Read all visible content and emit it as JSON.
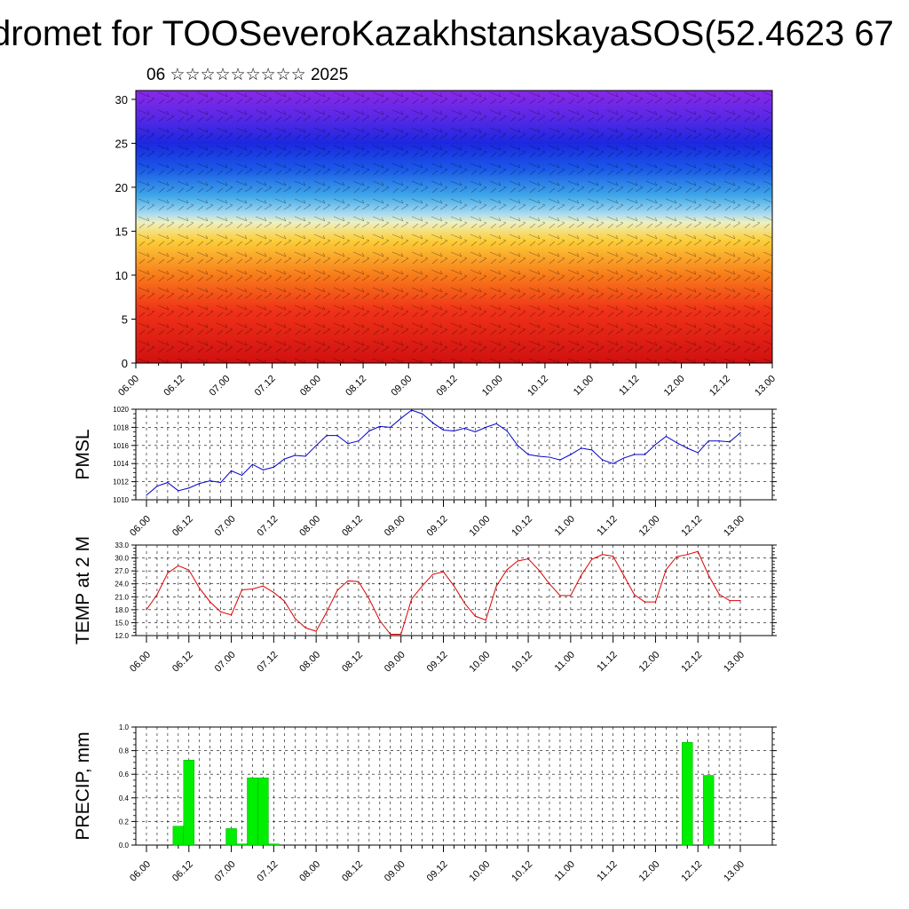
{
  "title": "dromet for TOOSeveroKazakhstanskayaSOS(52.4623 67",
  "subtitle": "06 ☆☆☆☆☆☆☆☆☆ 2025",
  "time_labels": [
    "06.00",
    "06.12",
    "07.00",
    "07.12",
    "08.00",
    "08.12",
    "09.00",
    "09.12",
    "10.00",
    "10.12",
    "11.00",
    "11.12",
    "12.00",
    "12.12",
    "13.00"
  ],
  "chart_data": [
    {
      "type": "heatmap",
      "title": "",
      "xlabel": "",
      "ylabel": "",
      "ylim": [
        0,
        31
      ],
      "yticks": [
        0,
        5,
        10,
        15,
        20,
        25,
        30
      ],
      "color_profile": [
        {
          "level": 0,
          "color": "#d01010"
        },
        {
          "level": 6,
          "color": "#f03218"
        },
        {
          "level": 10,
          "color": "#f87c1a"
        },
        {
          "level": 14,
          "color": "#fccf3a"
        },
        {
          "level": 16,
          "color": "#eef0c0"
        },
        {
          "level": 17,
          "color": "#a8daf0"
        },
        {
          "level": 19,
          "color": "#40a8e8"
        },
        {
          "level": 22,
          "color": "#1a5ae8"
        },
        {
          "level": 25,
          "color": "#1a28e0"
        },
        {
          "level": 28,
          "color": "#5a28e6"
        },
        {
          "level": 31,
          "color": "#8a28e8"
        }
      ]
    },
    {
      "type": "line",
      "ylabel": "PMSL",
      "ylim": [
        1010,
        1020
      ],
      "yticks": [
        1010,
        1012,
        1014,
        1016,
        1018,
        1020
      ],
      "color": "#0000cc",
      "series": [
        {
          "values": [
            1010.5,
            1011.5,
            1011.9,
            1011.0,
            1011.3,
            1011.8,
            1012.1,
            1011.9,
            1013.2,
            1012.7,
            1013.9,
            1013.3,
            1013.6,
            1014.5,
            1014.9,
            1014.8,
            1016.0,
            1017.1,
            1017.1,
            1016.2,
            1016.5,
            1017.6,
            1018.1,
            1018.0,
            1019.0,
            1019.9,
            1019.5,
            1018.5,
            1017.7,
            1017.6,
            1017.9,
            1017.5,
            1018.0,
            1018.4,
            1017.6,
            1016.0,
            1015.0,
            1014.8,
            1014.7,
            1014.4,
            1015.0,
            1015.7,
            1015.5,
            1014.4,
            1014.0,
            1014.6,
            1015.0,
            1015.0,
            1016.1,
            1017.0,
            1016.3,
            1015.7,
            1015.2,
            1016.5,
            1016.5,
            1016.4,
            1017.4
          ]
        }
      ]
    },
    {
      "type": "line",
      "ylabel": "TEMP at 2 M",
      "ylim": [
        12,
        33
      ],
      "yticks": [
        "12.0",
        "15.0",
        "18.0",
        "21.0",
        "24.0",
        "27.0",
        "30.0",
        "33.0"
      ],
      "color": "#dd0000",
      "series": [
        {
          "values": [
            18,
            21.5,
            26.5,
            28.2,
            27.2,
            23,
            19.8,
            17.5,
            16.8,
            22.6,
            22.8,
            23.5,
            22,
            20,
            16,
            13.8,
            13,
            17.5,
            22.5,
            24.7,
            24.5,
            20.5,
            15.5,
            12.3,
            12.3,
            20.5,
            23.5,
            26.2,
            26.8,
            23.5,
            19.5,
            16.5,
            15.6,
            23.5,
            27.3,
            29.3,
            29.8,
            27.2,
            24,
            21.3,
            21.3,
            26,
            29.7,
            30.8,
            30.4,
            26,
            21.5,
            19.8,
            19.8,
            27.3,
            30.3,
            30.8,
            31.5,
            26,
            21.6,
            20.1,
            20.1
          ]
        }
      ]
    },
    {
      "type": "bar",
      "ylabel": "PRECIP, mm",
      "ylim": [
        0,
        1
      ],
      "yticks": [
        "0.0",
        "0.2",
        "0.4",
        "0.6",
        "0.8",
        "1.0"
      ],
      "color": "#00ee00",
      "bars": [
        {
          "slot": 3,
          "value": 0.16
        },
        {
          "slot": 4,
          "value": 0.72
        },
        {
          "slot": 8,
          "value": 0.14
        },
        {
          "slot": 9,
          "value": 0.01
        },
        {
          "slot": 10,
          "value": 0.57
        },
        {
          "slot": 11,
          "value": 0.57
        },
        {
          "slot": 12,
          "value": 0.01
        },
        {
          "slot": 51,
          "value": 0.87
        },
        {
          "slot": 53,
          "value": 0.59
        }
      ]
    }
  ]
}
